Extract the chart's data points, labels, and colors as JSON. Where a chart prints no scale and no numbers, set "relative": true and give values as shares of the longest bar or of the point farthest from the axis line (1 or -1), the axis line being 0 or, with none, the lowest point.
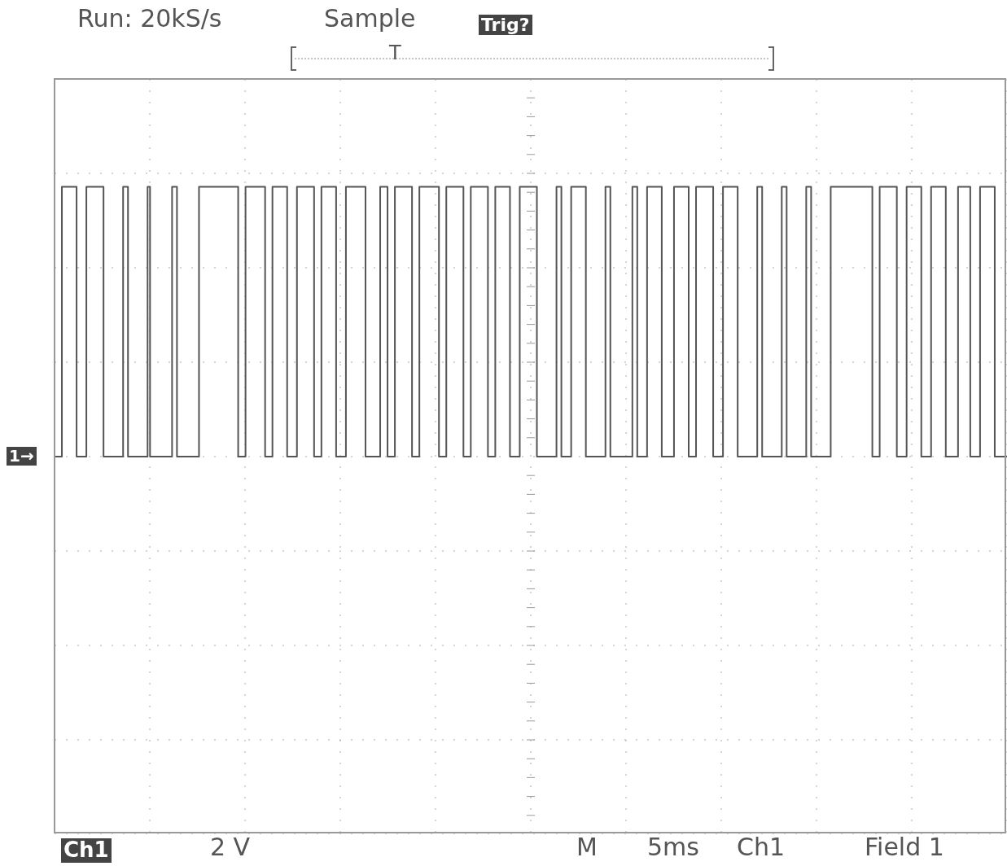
{
  "chart_data": {
    "type": "step",
    "relative": true,
    "grid": true,
    "tick_labels": false,
    "color": "#555555",
    "annotations": [
      "Run: 20kS/s",
      "Sample",
      "Trig?",
      "T",
      "1→",
      "Ch1",
      "2 V",
      "M",
      "5ms",
      "Ch1",
      "Field 1"
    ],
    "categories": [
      null,
      null,
      null,
      null,
      null,
      null,
      null,
      null,
      null,
      null,
      null,
      null,
      null,
      null,
      null,
      null,
      null,
      null,
      null,
      null,
      null,
      null,
      null,
      null,
      null,
      null,
      null,
      null,
      null,
      null,
      null,
      null,
      null,
      null,
      null,
      null,
      null,
      null,
      null,
      null,
      null,
      null,
      null,
      null,
      null,
      null,
      null,
      null,
      null,
      null,
      null,
      null,
      null,
      null,
      null,
      null,
      null,
      null,
      null,
      null,
      null,
      null,
      null,
      null,
      null,
      null,
      null,
      null,
      null,
      null,
      null,
      null,
      null,
      null,
      null,
      null,
      null,
      null,
      null,
      null,
      null,
      null,
      null,
      null,
      null,
      null,
      null,
      null,
      null,
      null,
      null,
      null,
      null,
      null,
      null,
      null,
      null,
      null,
      null,
      null,
      null,
      null,
      null,
      null,
      null,
      null,
      null,
      null,
      null,
      null,
      null,
      null,
      null,
      null,
      null,
      null,
      null,
      null,
      null,
      null,
      null,
      null,
      null,
      null,
      null,
      null,
      null,
      null,
      null,
      null,
      null,
      null,
      null,
      null,
      null,
      null,
      null,
      null,
      null,
      null,
      null,
      null,
      null,
      null,
      null,
      null,
      null,
      null,
      null,
      null,
      null,
      null,
      null,
      null,
      null,
      null,
      null,
      null,
      null,
      null,
      null,
      null,
      null,
      null,
      null,
      null,
      null,
      null,
      null,
      null,
      null,
      null,
      null,
      null,
      null,
      null,
      null,
      null,
      null,
      null,
      null,
      null,
      null,
      null,
      null,
      null,
      null,
      null,
      null,
      null,
      null,
      null,
      null,
      null,
      null,
      null,
      null,
      null,
      null,
      null,
      null,
      null,
      null,
      null,
      null,
      null,
      null,
      null,
      null,
      null,
      null,
      null,
      null,
      null,
      null,
      null,
      null,
      null,
      null,
      null,
      null,
      null,
      null,
      null,
      null,
      null,
      null,
      null,
      null,
      null,
      null,
      null,
      null,
      null,
      null,
      null,
      null,
      null,
      null,
      null,
      null,
      null,
      null,
      null,
      null,
      null,
      null,
      null,
      null,
      null,
      null,
      null,
      null,
      null,
      null,
      null,
      null,
      null,
      null,
      null,
      null,
      null,
      null,
      null,
      null,
      null,
      null,
      null,
      null,
      null,
      null,
      null,
      null,
      null,
      null,
      null,
      null,
      null,
      null,
      null,
      null,
      null,
      null,
      null,
      null,
      null,
      null,
      null,
      null,
      null,
      null,
      null,
      null,
      null,
      null,
      null,
      null,
      null,
      null,
      null,
      null,
      null,
      null,
      null,
      null,
      null,
      null,
      null,
      null,
      null,
      null,
      null,
      null,
      null,
      null,
      null,
      null,
      null,
      null,
      null,
      null,
      null,
      null,
      null,
      null,
      null,
      null,
      null,
      null,
      null,
      null,
      null,
      null,
      null,
      null,
      null,
      null,
      null,
      null,
      null,
      null,
      null,
      null,
      null,
      null,
      null,
      null,
      null,
      null,
      null,
      null,
      null,
      null,
      null,
      null,
      null,
      null,
      null,
      null,
      null,
      null,
      null,
      null,
      null,
      null,
      null,
      null,
      null,
      null,
      null,
      null,
      null,
      null,
      null,
      null,
      null,
      null,
      null,
      null,
      null,
      null,
      null,
      null,
      null,
      null,
      null,
      null,
      null,
      null,
      null
    ],
    "values": [
      0,
      0,
      0,
      1,
      1,
      1,
      1,
      1,
      1,
      0,
      0,
      0,
      0,
      1,
      1,
      1,
      1,
      1,
      1,
      1,
      0,
      0,
      0,
      0,
      0,
      0,
      0,
      0,
      1,
      1,
      0,
      0,
      0,
      0,
      0,
      0,
      0,
      0,
      1,
      0,
      0,
      0,
      0,
      0,
      0,
      0,
      0,
      0,
      1,
      1,
      0,
      0,
      0,
      0,
      0,
      0,
      0,
      0,
      0,
      1,
      1,
      1,
      1,
      1,
      1,
      1,
      1,
      1,
      1,
      1,
      1,
      1,
      1,
      1,
      1,
      0,
      0,
      0,
      1,
      1,
      1,
      1,
      1,
      1,
      1,
      1,
      0,
      0,
      0,
      1,
      1,
      1,
      1,
      1,
      1,
      0,
      0,
      0,
      0,
      1,
      1,
      1,
      1,
      1,
      1,
      1,
      0,
      0,
      0,
      1,
      1,
      1,
      1,
      1,
      1,
      0,
      0,
      0,
      0,
      1,
      1,
      1,
      1,
      1,
      1,
      1,
      1,
      0,
      0,
      0,
      0,
      0,
      0,
      1,
      1,
      1,
      0,
      0,
      0,
      1,
      1,
      1,
      1,
      1,
      1,
      1,
      0,
      0,
      0,
      1,
      1,
      1,
      1,
      1,
      1,
      1,
      1,
      0,
      0,
      0,
      1,
      1,
      1,
      1,
      1,
      1,
      1,
      0,
      0,
      0,
      1,
      1,
      1,
      1,
      1,
      1,
      1,
      0,
      0,
      0,
      1,
      1,
      1,
      1,
      1,
      1,
      0,
      0,
      0,
      0,
      1,
      1,
      1,
      1,
      1,
      1,
      1,
      0,
      0,
      0,
      0,
      0,
      0,
      0,
      0,
      1,
      1,
      0,
      0,
      0,
      0,
      1,
      1,
      1,
      1,
      1,
      1,
      0,
      0,
      0,
      0,
      0,
      0,
      0,
      0,
      1,
      1,
      0,
      0,
      0,
      0,
      0,
      0,
      0,
      0,
      0,
      1,
      1,
      0,
      0,
      0,
      0,
      1,
      1,
      1,
      1,
      1,
      1,
      0,
      0,
      0,
      0,
      0,
      1,
      1,
      1,
      1,
      1,
      1,
      0,
      0,
      0,
      1,
      1,
      1,
      1,
      1,
      1,
      1,
      0,
      0,
      0,
      0,
      1,
      1,
      1,
      1,
      1,
      1,
      0,
      0,
      0,
      0,
      0,
      0,
      0,
      0,
      1,
      1,
      0,
      0,
      0,
      0,
      0,
      0,
      0,
      0,
      1,
      1,
      0,
      0,
      0,
      0,
      0,
      0,
      0,
      0,
      1,
      1,
      0,
      0,
      0,
      0,
      0,
      0,
      0,
      0,
      1,
      1,
      1,
      1,
      1,
      1,
      1,
      1,
      1,
      1,
      1,
      1,
      1,
      1,
      1,
      1,
      1,
      0,
      0,
      0,
      1,
      1,
      1,
      1,
      1,
      1,
      1,
      0,
      0,
      0,
      0,
      1,
      1,
      1,
      1,
      1,
      1,
      0,
      0,
      0,
      0,
      1,
      1,
      1,
      1,
      1,
      1,
      0,
      0,
      0,
      0,
      0,
      1,
      1,
      1,
      1,
      1,
      0,
      0,
      0,
      0,
      1,
      1,
      1,
      1,
      1,
      1,
      0,
      0,
      0,
      0,
      0,
      0
    ]
  }
}
